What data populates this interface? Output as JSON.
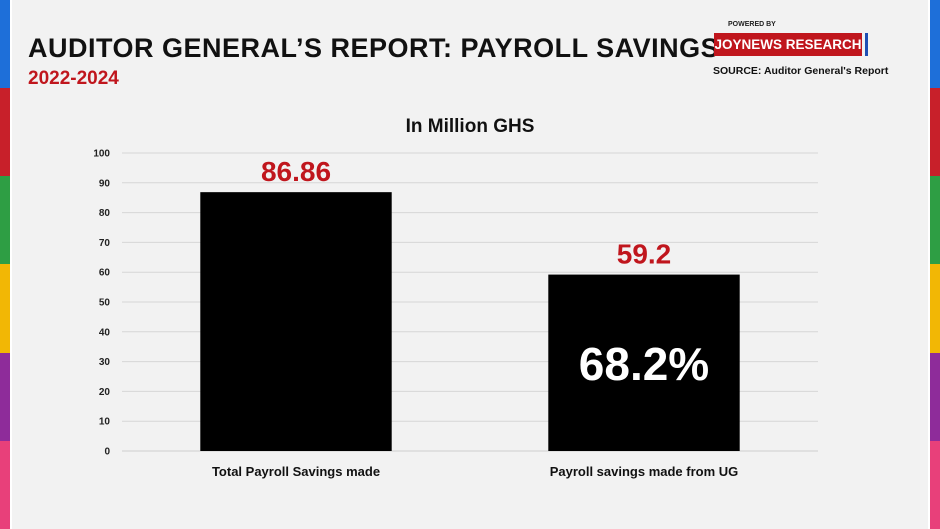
{
  "header": {
    "title": "AUDITOR GENERAL’S REPORT: PAYROLL SAVINGS",
    "subtitle": "2022-2024"
  },
  "branding": {
    "powered_by": "POWERED BY",
    "name": "JOYNEWS RESEARCH",
    "source": "SOURCE: Auditor General's Report"
  },
  "colors": {
    "background": "#f2f2f2",
    "bar": "#000000",
    "accent_red": "#c0161d",
    "stripes": [
      "#1e6fd9",
      "#c8202a",
      "#2e9e44",
      "#f2b705",
      "#8e2c9a",
      "#e8407a"
    ]
  },
  "chart_data": {
    "type": "bar",
    "title": "In Million GHS",
    "categories": [
      "Total Payroll Savings made",
      "Payroll savings made from UG"
    ],
    "values": [
      86.86,
      59.2
    ],
    "data_labels": [
      "86.86",
      "59.2"
    ],
    "annotations": [
      {
        "category": "Payroll savings made from UG",
        "text": "68.2%"
      }
    ],
    "ylim": [
      0,
      100
    ],
    "yticks": [
      0,
      10,
      20,
      30,
      40,
      50,
      60,
      70,
      80,
      90,
      100
    ],
    "grid": true,
    "legend": "none",
    "xlabel": "",
    "ylabel": ""
  }
}
